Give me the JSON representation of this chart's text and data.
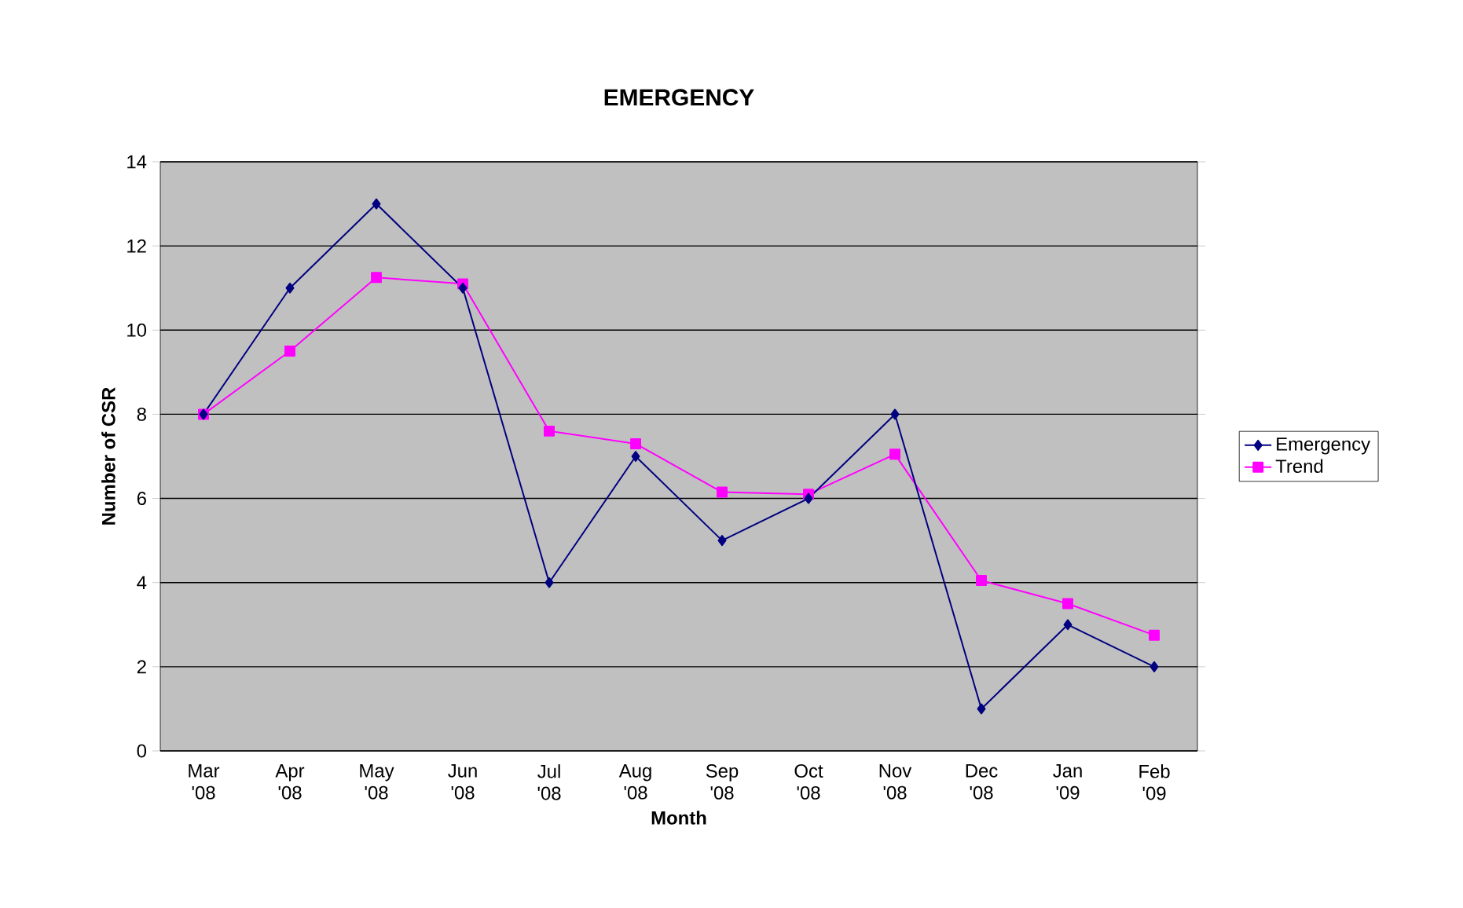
{
  "chart_data": {
    "type": "line",
    "title": "EMERGENCY",
    "xlabel": "Month",
    "ylabel": "Number of CSR",
    "categories": [
      "Mar '08",
      "Apr '08",
      "May '08",
      "Jun '08",
      "Jul '08",
      "Aug '08",
      "Sep '08",
      "Oct '08",
      "Nov '08",
      "Dec '08",
      "Jan '09",
      "Feb '09"
    ],
    "series": [
      {
        "name": "Emergency",
        "color": "#000080",
        "marker": "diamond",
        "values": [
          8,
          11,
          13,
          11,
          4,
          7,
          5,
          6,
          8,
          1,
          3,
          2
        ]
      },
      {
        "name": "Trend",
        "color": "#ff00ff",
        "marker": "square",
        "values": [
          8,
          9.5,
          11.25,
          11.1,
          7.6,
          7.3,
          6.15,
          6.1,
          7.05,
          4.05,
          3.5,
          2.75
        ]
      }
    ],
    "ylim": [
      0,
      14
    ],
    "yticks": [
      0,
      2,
      4,
      6,
      8,
      10,
      12,
      14
    ],
    "grid": "y",
    "legend": "right"
  }
}
